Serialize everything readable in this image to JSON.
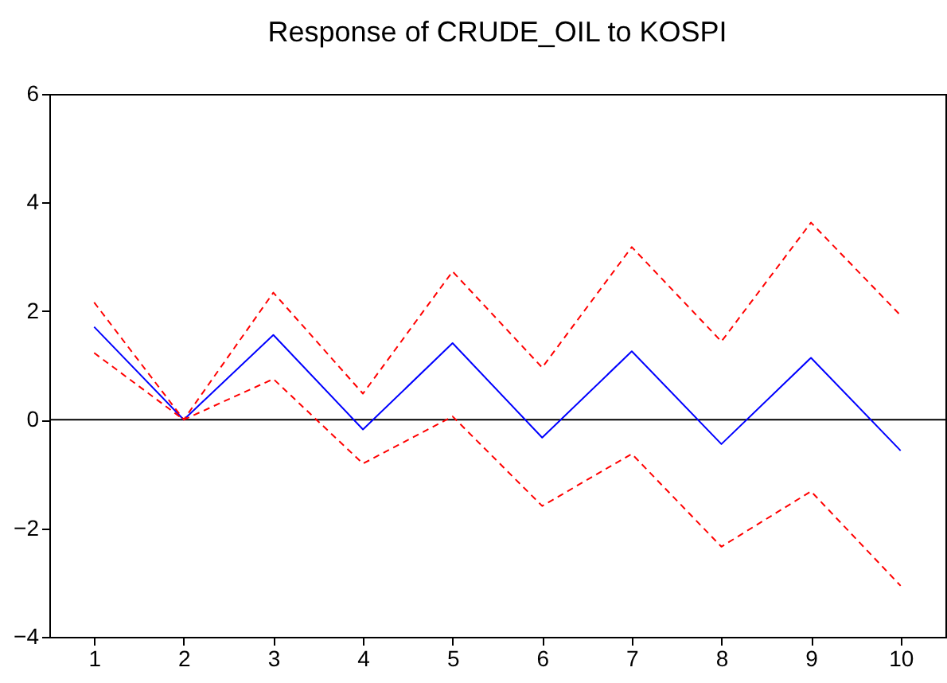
{
  "chart_data": {
    "type": "line",
    "title": "Response of CRUDE_OIL to KOSPI",
    "categories": [
      "1",
      "2",
      "3",
      "4",
      "5",
      "6",
      "7",
      "8",
      "9",
      "10"
    ],
    "series": [
      {
        "color": "#0000ff",
        "line_style": "solid",
        "values": [
          1.71,
          0,
          1.56,
          -0.18,
          1.41,
          -0.33,
          1.26,
          -0.45,
          1.14,
          -0.57
        ]
      },
      {
        "color": "#ff0000",
        "line_style": "dashed",
        "values": [
          2.16,
          0,
          2.34,
          0.48,
          2.73,
          0.96,
          3.18,
          1.44,
          3.63,
          1.92
        ]
      },
      {
        "color": "#ff0000",
        "line_style": "dashed",
        "values": [
          1.23,
          0,
          0.75,
          -0.81,
          0.06,
          -1.59,
          -0.63,
          -2.34,
          -1.32,
          -3.06
        ]
      }
    ],
    "ylim": [
      -4,
      6
    ],
    "yticks": [
      -4,
      -2,
      0,
      2,
      4,
      6
    ],
    "grid": false,
    "ref_lines": [
      {
        "axis": "y",
        "value": 0,
        "color": "#000000"
      }
    ]
  }
}
